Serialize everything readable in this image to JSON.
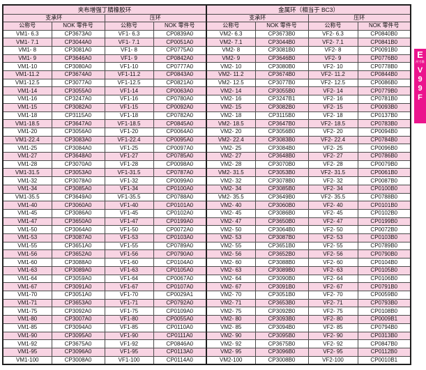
{
  "colors": {
    "row_stripe_pink": "#F8D4E3",
    "header_pink": "#F8D4E3",
    "tab_magenta": "#EB148D",
    "border_black": "#1F1F1F"
  },
  "side_tab": {
    "letter": "E",
    "sublabel": "尺寸表",
    "code": [
      "V",
      "9",
      "9",
      "F"
    ]
  },
  "table": {
    "group_headers": [
      "夹布增强丁腈橡胶环",
      "金属环（相当于 BC3）"
    ],
    "sub_headers": [
      "支承环",
      "压环",
      "支承环",
      "压环"
    ],
    "col_headers": [
      "公称号",
      "NOK 零件号",
      "公称号",
      "NOK 零件号",
      "公称号",
      "NOK 零件号",
      "公称号",
      "NOK 零件号"
    ],
    "rows": [
      [
        "VM1- 6.3",
        "CP3673A0",
        "VF1- 6.3",
        "CP0839A0",
        "VM2- 6.3",
        "CP3673B0",
        "VF2- 6.3",
        "CP0840B0"
      ],
      [
        "VM1- 7.1",
        "CP3044A0",
        "VF1- 7.1",
        "CP0051A0",
        "VM2- 7.1",
        "CP3044B0",
        "VF2- 7.1",
        "CP0841B0"
      ],
      [
        "VM1- 8",
        "CP3081A0",
        "VF1- 8",
        "CP0775A0",
        "VM2- 8",
        "CP3081B0",
        "VF2- 8",
        "CP0091B0"
      ],
      [
        "VM1- 9",
        "CP3646A0",
        "VF1- 9",
        "CP0842A0",
        "VM2- 9",
        "CP3646B0",
        "VF2- 9",
        "CP0776B0"
      ],
      [
        "VM1-10",
        "CP3080A0",
        "VF1-10",
        "CP0777A0",
        "VM2- 10",
        "CP3080B0",
        "VF2- 10",
        "CP0778B0"
      ],
      [
        "VM1-11.2",
        "CP3674A0",
        "VF1-11.2",
        "CP0843A0",
        "VM2- 11.2",
        "CP3674B0",
        "VF2- 11.2",
        "CP0844B0"
      ],
      [
        "VM1-12.5",
        "CP3077A0",
        "VF1-12.5",
        "CP0821A0",
        "VM2- 12.5",
        "CP3077B0",
        "VF2- 12.5",
        "CP0086B0"
      ],
      [
        "VM1-14",
        "CP3055A0",
        "VF1-14",
        "CP0063A0",
        "VM2- 14",
        "CP3055B0",
        "VF2- 14",
        "CP0779B0"
      ],
      [
        "VM1-16",
        "CP3247A0",
        "VF1-16",
        "CP0780A0",
        "VM2- 16",
        "CP3247B1",
        "VF2- 16",
        "CP0781B0"
      ],
      [
        "VM1-15",
        "CP3082A0",
        "VF1-15",
        "CP0092A0",
        "VM2- 15",
        "CP3082B0",
        "VF2- 15",
        "CP0093B0"
      ],
      [
        "VM1-18",
        "CP3115A0",
        "VF1-18",
        "CP0782A0",
        "VM2- 18",
        "CP3115B0",
        "VF2- 18",
        "CP0137B0"
      ],
      [
        "VM1-18.5",
        "CP3647A0",
        "VF1-18.5",
        "CP0845A0",
        "VM2- 18.5",
        "CP3647B0",
        "VF2- 18.5",
        "CP0783B0"
      ],
      [
        "VM1-20",
        "CP3056A0",
        "VF1-20",
        "CP0064A0",
        "VM2- 20",
        "CP3056B0",
        "VF2- 20",
        "CP0094B0"
      ],
      [
        "VM1-22.4",
        "CP3083A0",
        "VF1-22.4",
        "CP0095A0",
        "VM2- 22.4",
        "CP3083B0",
        "VF2- 22.4",
        "CP0784B0"
      ],
      [
        "VM1-25",
        "CP3084A0",
        "VF1-25",
        "CP0097A0",
        "VM2- 25",
        "CP3084B0",
        "VF2- 25",
        "CP0096B0"
      ],
      [
        "VM1-27",
        "CP3648A0",
        "VF1-27",
        "CP0785A0",
        "VM2- 27",
        "CP3648B0",
        "VF2- 27",
        "CP0786B0"
      ],
      [
        "VM1-28",
        "CP3070A0",
        "VF1-28",
        "CP0098A0",
        "VM2- 28",
        "CP3070B0",
        "VF2- 28",
        "CP0079B0"
      ],
      [
        "VM1-31.5",
        "CP3053A0",
        "VF1-31.5",
        "CP0787A0",
        "VM2- 31.5",
        "CP3053B0",
        "VF2- 31.5",
        "CP0061B0"
      ],
      [
        "VM1-32",
        "CP3078A0",
        "VF1-32",
        "CP0099A0",
        "VM2- 32",
        "CP3078B0",
        "VF2- 32",
        "CP0087B0"
      ],
      [
        "VM1-34",
        "CP3085A0",
        "VF1-34",
        "CP0100A0",
        "VM2- 34",
        "CP3085B0",
        "VF2- 34",
        "CP0100B0"
      ],
      [
        "VM1-35.5",
        "CP3649A0",
        "VF1-35.5",
        "CP0788A0",
        "VM2- 35.5",
        "CP3649B0",
        "VF2- 35.5",
        "CP0788B0"
      ],
      [
        "VM1-40",
        "CP3060A0",
        "VF1-40",
        "CP0101A0",
        "VM2- 40",
        "CP3060B0",
        "VF2- 40",
        "CP0101B0"
      ],
      [
        "VM1-45",
        "CP3086A0",
        "VF1-45",
        "CP0102A0",
        "VM2- 45",
        "CP3086B0",
        "VF2- 45",
        "CP0102B0"
      ],
      [
        "VM1-47",
        "CP3650A0",
        "VF1-47",
        "CP0199A0",
        "VM2- 47",
        "CP3650B0",
        "VF2- 47",
        "CP0199B0"
      ],
      [
        "VM1-50",
        "CP3064A0",
        "VF1-50",
        "CP0072A0",
        "VM2- 50",
        "CP3064B0",
        "VF2- 50",
        "CP0072B0"
      ],
      [
        "VM1-53",
        "CP3087A0",
        "VF1-53",
        "CP0103A0",
        "VM2- 53",
        "CP3087B0",
        "VF2- 53",
        "CP0103B0"
      ],
      [
        "VM1-55",
        "CP3651A0",
        "VF1-55",
        "CP0789A0",
        "VM2- 55",
        "CP3651B0",
        "VF2- 55",
        "CP0789B0"
      ],
      [
        "VM1-56",
        "CP3652A0",
        "VF1-56",
        "CP0790A0",
        "VM2- 56",
        "CP3652B0",
        "VF2- 56",
        "CP0790B0"
      ],
      [
        "VM1-60",
        "CP3088A0",
        "VF1-60",
        "CP0104A0",
        "VM2- 60",
        "CP3088B0",
        "VF2- 60",
        "CP0104B0"
      ],
      [
        "VM1-63",
        "CP3089A0",
        "VF1-63",
        "CP0105A0",
        "VM2- 63",
        "CP3089B0",
        "VF2- 63",
        "CP0105B0"
      ],
      [
        "VM1-64",
        "CP3059A0",
        "VF1-64",
        "CP0067A0",
        "VM2- 64",
        "CP3090B0",
        "VF2- 64",
        "CP0106B0"
      ],
      [
        "VM1-67",
        "CP3091A0",
        "VF1-67",
        "CP0107A0",
        "VM2- 67",
        "CP3091B0",
        "VF2- 67",
        "CP0791B0"
      ],
      [
        "VM1-70",
        "CP3051A0",
        "VF1-70",
        "CP0029A1",
        "VM2- 70",
        "CP3051B0",
        "VF2- 70",
        "CP0059B0"
      ],
      [
        "VM1-71",
        "CP3653A0",
        "VF1-71",
        "CP0792A0",
        "VM2- 71",
        "CP3653B0",
        "VF2- 71",
        "CP0793B0"
      ],
      [
        "VM1-75",
        "CP3092A0",
        "VF1-75",
        "CP0109A0",
        "VM2- 75",
        "CP3092B0",
        "VF2- 75",
        "CP0108B0"
      ],
      [
        "VM1-80",
        "CP3007A0",
        "VF1-80",
        "CP0055A0",
        "VM2- 80",
        "CP3093B0",
        "VF2- 80",
        "CP0009B1"
      ],
      [
        "VM1-85",
        "CP3094A0",
        "VF1-85",
        "CP0110A0",
        "VM2- 85",
        "CP3094B0",
        "VF2- 85",
        "CP0794B0"
      ],
      [
        "VM1-90",
        "CP3095A0",
        "VF1-90",
        "CP0111A0",
        "VM2- 90",
        "CP3095B0",
        "VF2- 90",
        "CP0313B0"
      ],
      [
        "VM1-92",
        "CP3675A0",
        "VF1-92",
        "CP0846A0",
        "VM2- 92",
        "CP3675B0",
        "VF2- 92",
        "CP0847B0"
      ],
      [
        "VM1-95",
        "CP3096A0",
        "VF1-95",
        "CP0113A0",
        "VM2- 95",
        "CP3096B0",
        "VF2- 95",
        "CP0112B0"
      ],
      [
        "VM1-100",
        "CP3008A0",
        "VF1-100",
        "CP0114A0",
        "VM2-100",
        "CP3008B0",
        "VF2-100",
        "CP0010B1"
      ]
    ]
  }
}
